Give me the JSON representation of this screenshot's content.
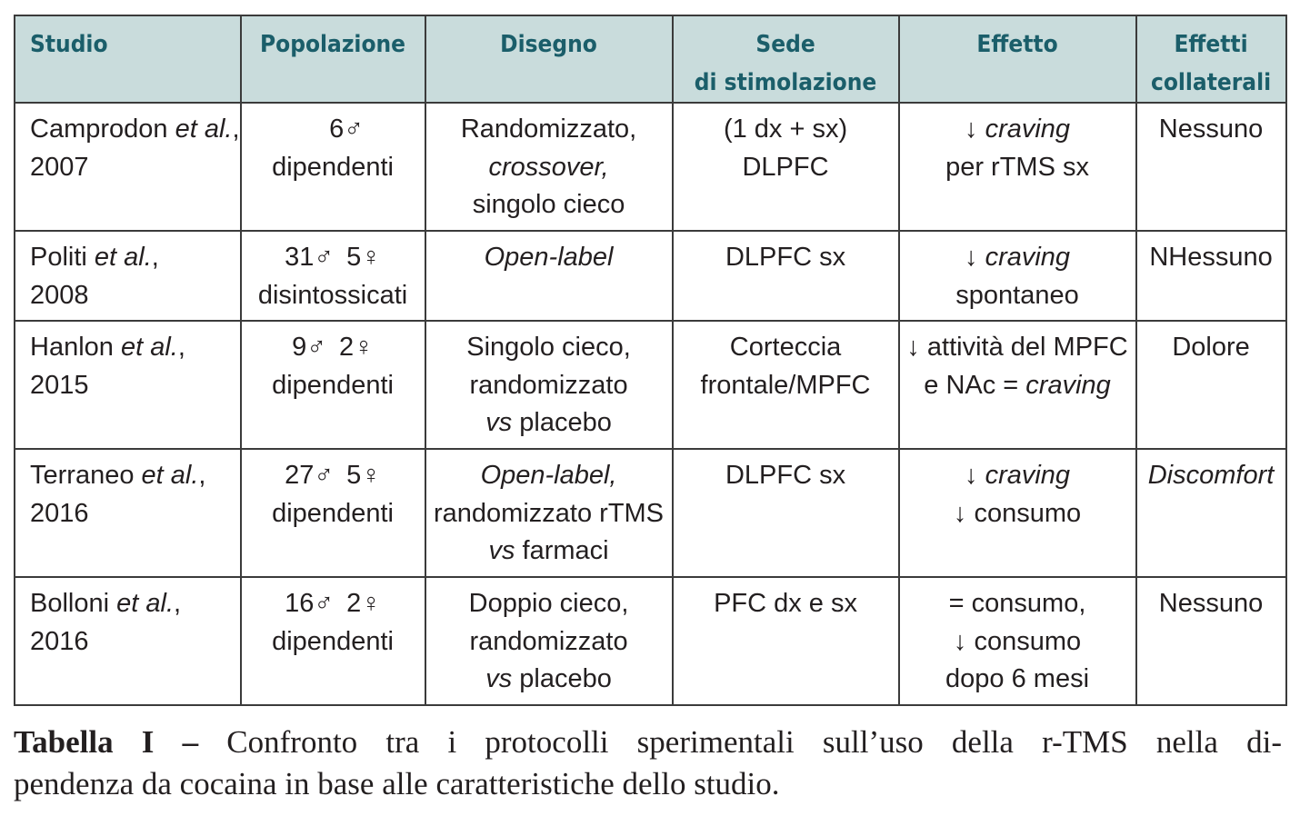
{
  "table": {
    "headers": [
      {
        "l1": "Studio",
        "l2": ""
      },
      {
        "l1": "Popolazione",
        "l2": ""
      },
      {
        "l1": "Disegno",
        "l2": ""
      },
      {
        "l1": "Sede",
        "l2": "di stimolazione"
      },
      {
        "l1": "Effetto",
        "l2": ""
      },
      {
        "l1": "Effetti",
        "l2": "collaterali"
      }
    ],
    "rows": [
      {
        "study_author": "Camprodon",
        "study_etal": "et al.",
        "study_year": "2007",
        "pop_count": "6♂",
        "pop_female": "",
        "pop_desc": "dipendenti",
        "design": [
          "Randomizzato,",
          "crossover,",
          "singolo cieco"
        ],
        "site": [
          "(1 dx + sx)",
          "DLPFC"
        ],
        "effect": [
          "↓ craving",
          "per rTMS sx"
        ],
        "side": "Nessuno"
      },
      {
        "study_author": "Politi",
        "study_etal": "et al.",
        "study_year": "2008",
        "pop_count": "31♂",
        "pop_female": "5♀",
        "pop_desc": "disintossicati",
        "design": [
          "Open-label"
        ],
        "site": [
          "DLPFC sx"
        ],
        "effect": [
          "↓ craving",
          "spontaneo"
        ],
        "side": "NHessuno"
      },
      {
        "study_author": "Hanlon",
        "study_etal": "et al.",
        "study_year": "2015",
        "pop_count": "9♂",
        "pop_female": "2♀",
        "pop_desc": "dipendenti",
        "design": [
          "Singolo cieco,",
          "randomizzato",
          "vs placebo"
        ],
        "site": [
          "Corteccia",
          "frontale/MPFC"
        ],
        "effect": [
          "↓ attività del MPFC",
          "e NAc = craving"
        ],
        "side": "Dolore"
      },
      {
        "study_author": "Terraneo",
        "study_etal": "et al.",
        "study_year": "2016",
        "pop_count": "27♂",
        "pop_female": "5♀",
        "pop_desc": "dipendenti",
        "design": [
          "Open-label,",
          "randomizzato rTMS",
          "vs farmaci"
        ],
        "site": [
          "DLPFC sx"
        ],
        "effect": [
          "↓ craving",
          "↓ consumo"
        ],
        "side": "Discomfort"
      },
      {
        "study_author": "Bolloni",
        "study_etal": "et al.",
        "study_year": "2016",
        "pop_count": "16♂",
        "pop_female": "2♀",
        "pop_desc": "dipendenti",
        "design": [
          "Doppio cieco,",
          "randomizzato",
          "vs placebo"
        ],
        "site": [
          "PFC dx e sx"
        ],
        "effect": [
          "= consumo,",
          "↓ consumo",
          "dopo 6 mesi"
        ],
        "side": "Nessuno"
      }
    ]
  },
  "caption": {
    "label": "Tabella I –",
    "text_line1": "Confronto tra i protocolli sperimentali sull’uso della r-TMS nella di-",
    "text_line2": "pendenza da cocaina in base alle caratteristiche dello studio."
  }
}
